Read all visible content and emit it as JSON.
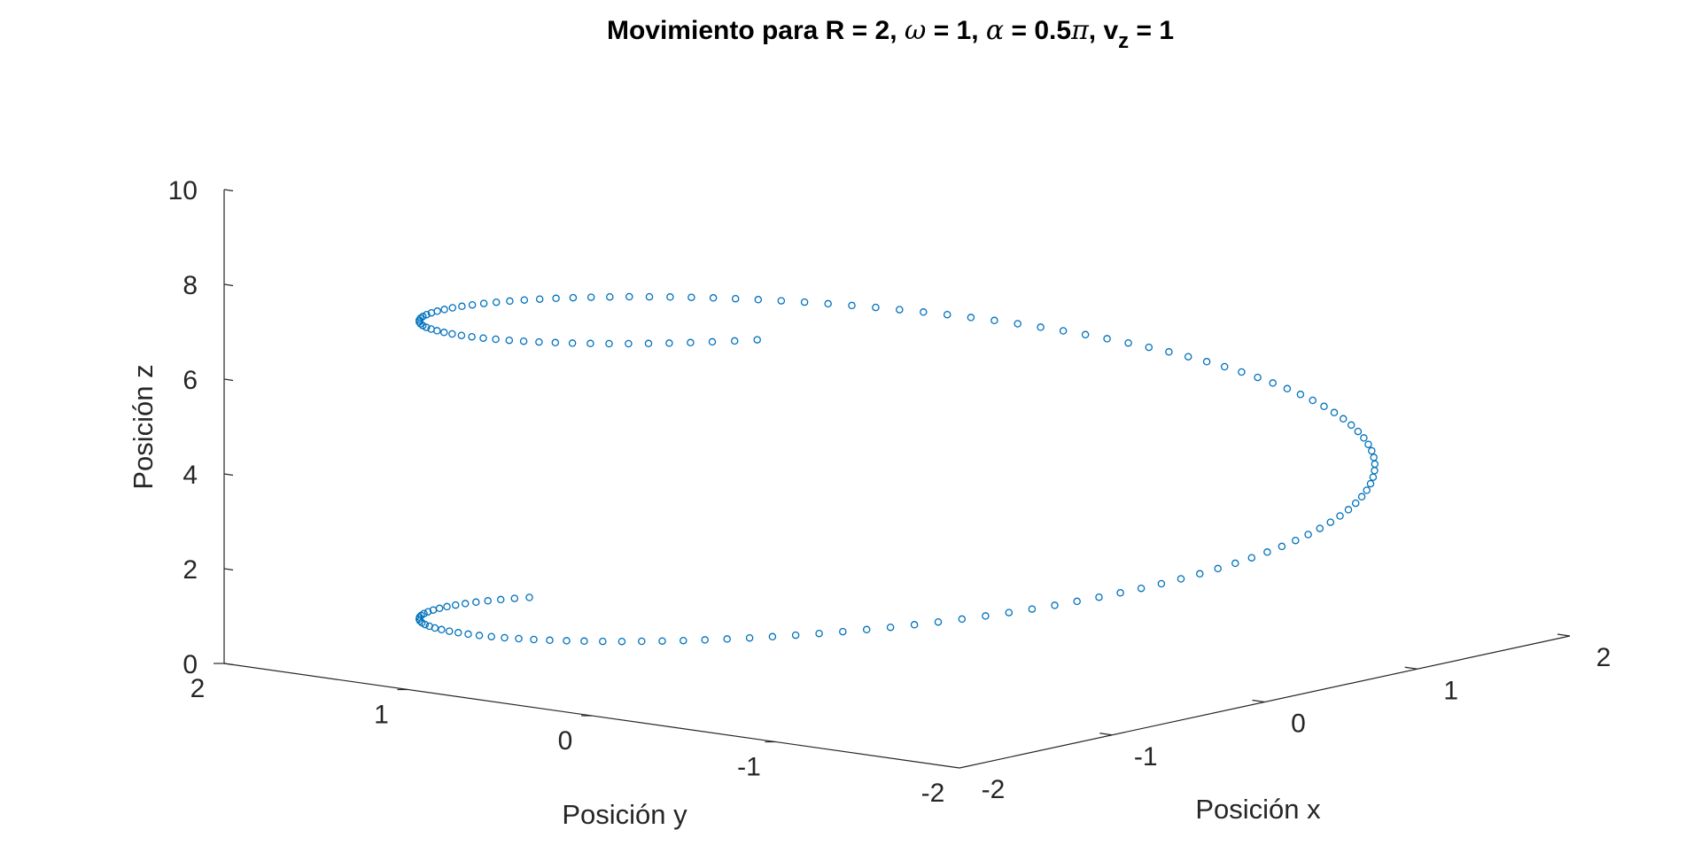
{
  "chart_data": {
    "type": "scatter3d",
    "title": {
      "prefix": "Movimiento para R = 2, ",
      "omega_symbol": "ω",
      "omega_part": " = 1, ",
      "alpha_symbol": "α",
      "alpha_part": " = 0.5",
      "pi_symbol": "π",
      "vz_part": ", v",
      "vz_sub": "z",
      "suffix": " = 1"
    },
    "xlabel": "Posición x",
    "ylabel": "Posición y",
    "zlabel": "Posición z",
    "xlim": [
      -2,
      2
    ],
    "ylim": [
      -2,
      2
    ],
    "zlim": [
      0,
      10
    ],
    "xticks": [
      -2,
      -1,
      0,
      1,
      2
    ],
    "yticks": [
      -2,
      -1,
      0,
      1,
      2
    ],
    "zticks": [
      0,
      2,
      4,
      6,
      8,
      10
    ],
    "xtick_labels": [
      "-2",
      "-1",
      "0",
      "1",
      "2"
    ],
    "ytick_labels": [
      "-2",
      "-1",
      "0",
      "1",
      "2"
    ],
    "ztick_labels": [
      "0",
      "2",
      "4",
      "6",
      "8",
      "10"
    ],
    "marker": "o",
    "marker_color": "#0072BD",
    "R": 2,
    "omega": 1,
    "alpha_pi_fraction": 0.5,
    "vz": 1,
    "t_start": 0,
    "t_end": 8.25,
    "t_step": 0.05
  }
}
